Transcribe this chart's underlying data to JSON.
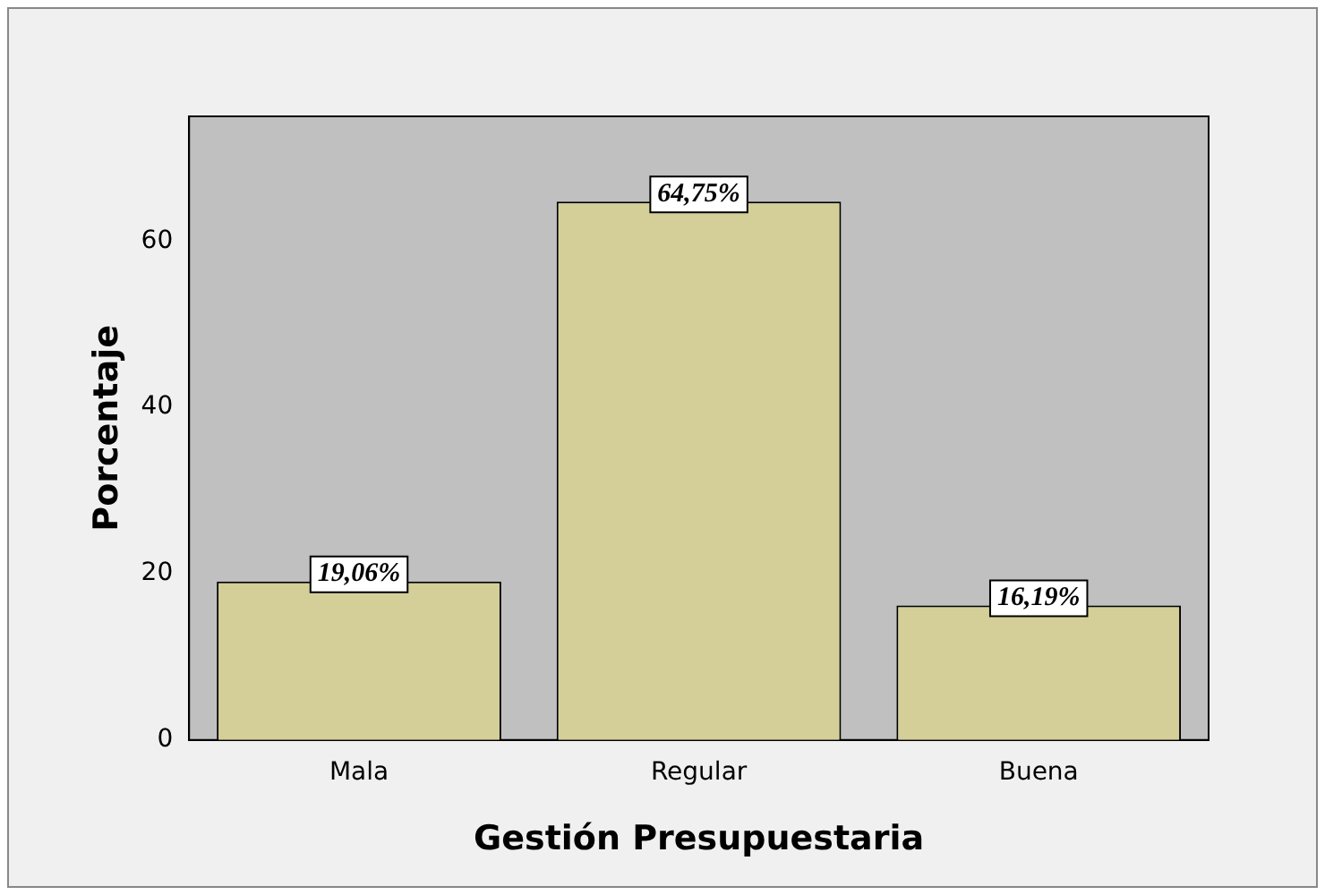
{
  "chart_data": {
    "type": "bar",
    "xlabel": "Gestión Presupuestaria",
    "ylabel": "Porcentaje",
    "categories": [
      "Mala",
      "Regular",
      "Buena"
    ],
    "values": [
      19.06,
      64.75,
      16.19
    ],
    "value_labels": [
      "19,06%",
      "64,75%",
      "16,19%"
    ],
    "color": "#d4cf98",
    "ylim": [
      0,
      75
    ],
    "yticks": [
      0,
      20,
      40,
      60
    ],
    "grid": false,
    "legend": false
  }
}
